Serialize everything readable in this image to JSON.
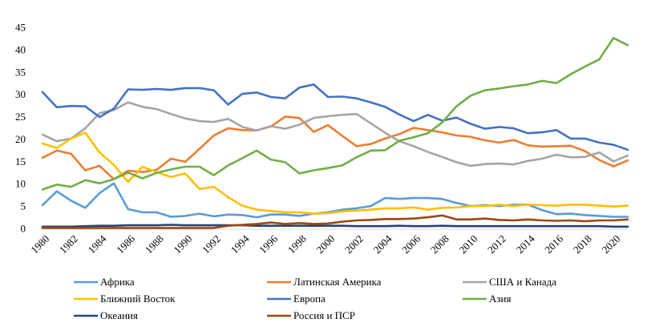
{
  "chart_data": {
    "type": "line",
    "title": "",
    "xlabel": "",
    "ylabel": "",
    "ylim": [
      0,
      45
    ],
    "yticks": [
      0,
      5,
      10,
      15,
      20,
      25,
      30,
      35,
      40,
      45
    ],
    "xticks": [
      "1980",
      "1982",
      "1984",
      "1986",
      "1988",
      "1990",
      "1992",
      "1994",
      "1996",
      "1998",
      "2000",
      "2002",
      "2004",
      "2006",
      "2008",
      "2010",
      "2012",
      "2014",
      "2016",
      "2018",
      "2020"
    ],
    "grid": false,
    "legend_position": "bottom",
    "x": [
      1980,
      1981,
      1982,
      1983,
      1984,
      1985,
      1986,
      1987,
      1988,
      1989,
      1990,
      1991,
      1992,
      1993,
      1994,
      1995,
      1996,
      1997,
      1998,
      1999,
      2000,
      2001,
      2002,
      2003,
      2004,
      2005,
      2006,
      2007,
      2008,
      2009,
      2010,
      2011,
      2012,
      2013,
      2014,
      2015,
      2016,
      2017,
      2018,
      2019,
      2020,
      2021
    ],
    "series": [
      {
        "name": "Африка",
        "color": "#5B9BD5",
        "values": [
          5.2,
          8.3,
          6.2,
          4.6,
          7.9,
          10.1,
          4.3,
          3.6,
          3.6,
          2.6,
          2.8,
          3.3,
          2.7,
          3.1,
          3.0,
          2.5,
          3.1,
          3.1,
          2.8,
          3.3,
          3.6,
          4.2,
          4.5,
          5.0,
          6.8,
          6.6,
          6.8,
          6.8,
          6.6,
          5.7,
          5.0,
          5.2,
          5.0,
          5.3,
          5.3,
          4.1,
          3.2,
          3.3,
          3.0,
          2.8,
          2.6,
          2.6
        ]
      },
      {
        "name": "Латинская Америка",
        "color": "#ED7D31",
        "values": [
          15.8,
          17.4,
          16.7,
          13.0,
          14.0,
          11.0,
          12.9,
          12.6,
          13.1,
          15.6,
          14.9,
          17.8,
          20.8,
          22.4,
          22.0,
          21.9,
          22.8,
          25.0,
          24.7,
          21.6,
          23.1,
          20.7,
          18.4,
          18.9,
          20.1,
          21.1,
          22.5,
          22.0,
          21.5,
          20.8,
          20.5,
          19.7,
          19.2,
          19.8,
          18.6,
          18.3,
          18.4,
          18.5,
          17.3,
          15.3,
          13.9,
          15.2
        ]
      },
      {
        "name": "США и Канада",
        "color": "#A5A5A5",
        "values": [
          21.0,
          19.5,
          20.1,
          22.4,
          25.8,
          26.5,
          28.2,
          27.2,
          26.7,
          25.6,
          24.6,
          24.0,
          23.8,
          24.5,
          22.7,
          21.9,
          22.9,
          22.3,
          23.2,
          24.7,
          25.1,
          25.4,
          25.6,
          23.5,
          21.4,
          19.5,
          18.4,
          17.1,
          16.0,
          14.8,
          14.0,
          14.4,
          14.5,
          14.3,
          15.1,
          15.6,
          16.5,
          15.9,
          16.0,
          17.0,
          15.0,
          16.3
        ]
      },
      {
        "name": "Ближний Восток",
        "color": "#FFC000",
        "values": [
          19.0,
          18.0,
          20.1,
          21.4,
          17.0,
          14.2,
          10.4,
          13.8,
          12.6,
          11.5,
          12.3,
          8.8,
          9.3,
          7.0,
          5.1,
          4.2,
          3.9,
          3.6,
          3.6,
          3.3,
          3.4,
          3.8,
          4.0,
          4.2,
          4.5,
          4.5,
          4.7,
          4.2,
          4.6,
          4.7,
          5.0,
          5.0,
          5.3,
          5.0,
          5.3,
          5.2,
          5.1,
          5.3,
          5.3,
          5.1,
          4.9,
          5.1
        ]
      },
      {
        "name": "Европа",
        "color": "#4472C4",
        "values": [
          30.5,
          27.1,
          27.4,
          27.3,
          24.9,
          26.8,
          31.1,
          31.0,
          31.2,
          31.0,
          31.4,
          31.4,
          30.9,
          27.7,
          30.1,
          30.4,
          29.4,
          29.1,
          31.5,
          32.2,
          29.4,
          29.5,
          29.1,
          28.2,
          27.2,
          25.5,
          24.0,
          25.4,
          24.1,
          24.8,
          23.4,
          22.3,
          22.7,
          22.4,
          21.3,
          21.5,
          22.0,
          20.1,
          20.1,
          19.2,
          18.7,
          17.6
        ]
      },
      {
        "name": "Азия",
        "color": "#70AD47",
        "values": [
          8.7,
          9.8,
          9.3,
          10.8,
          10.1,
          11.0,
          12.5,
          11.2,
          12.4,
          13.2,
          13.8,
          13.8,
          11.9,
          14.1,
          15.7,
          17.4,
          15.4,
          14.8,
          12.3,
          13.0,
          13.5,
          14.1,
          15.9,
          17.4,
          17.5,
          19.6,
          20.4,
          21.3,
          23.7,
          27.3,
          29.7,
          30.9,
          31.3,
          31.8,
          32.2,
          33.0,
          32.5,
          34.5,
          36.2,
          37.8,
          42.6,
          41.0
        ]
      },
      {
        "name": "Океания",
        "color": "#264478",
        "values": [
          0.4,
          0.4,
          0.4,
          0.5,
          0.6,
          0.6,
          0.7,
          0.7,
          0.7,
          0.8,
          0.7,
          0.7,
          0.7,
          0.7,
          0.7,
          0.6,
          0.6,
          0.6,
          0.6,
          0.6,
          0.6,
          0.6,
          0.5,
          0.5,
          0.5,
          0.6,
          0.5,
          0.5,
          0.6,
          0.5,
          0.5,
          0.5,
          0.5,
          0.5,
          0.5,
          0.5,
          0.5,
          0.5,
          0.5,
          0.5,
          0.4,
          0.4
        ]
      },
      {
        "name": "Россия и ПСР",
        "color": "#9E480E",
        "values": [
          0.1,
          0.1,
          0.1,
          0.1,
          0.1,
          0.1,
          0.1,
          0.1,
          0.1,
          0.1,
          0.1,
          0.1,
          0.1,
          0.6,
          0.8,
          1.0,
          1.3,
          1.0,
          1.2,
          1.0,
          1.1,
          1.5,
          1.8,
          1.9,
          2.1,
          2.1,
          2.2,
          2.5,
          2.9,
          2.0,
          2.0,
          2.2,
          1.9,
          1.8,
          2.0,
          1.8,
          1.7,
          1.8,
          1.6,
          1.8,
          1.8,
          2.0
        ]
      }
    ],
    "legend_rows": [
      [
        0,
        1,
        2
      ],
      [
        3,
        4,
        5
      ],
      [
        6,
        7
      ]
    ]
  }
}
